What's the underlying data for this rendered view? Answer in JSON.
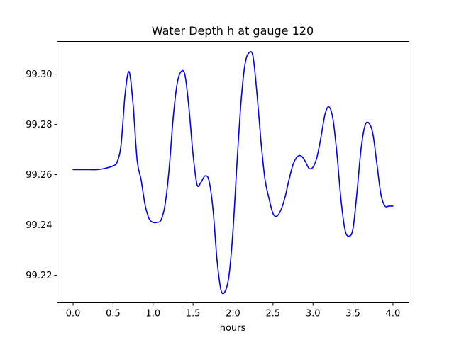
{
  "chart_data": {
    "type": "line",
    "title": "Water Depth h at gauge 120",
    "xlabel": "hours",
    "ylabel": "",
    "xlim": [
      -0.2,
      4.2
    ],
    "ylim": [
      99.209,
      99.313
    ],
    "xticks": [
      0.0,
      0.5,
      1.0,
      1.5,
      2.0,
      2.5,
      3.0,
      3.5,
      4.0
    ],
    "xtick_labels": [
      "0.0",
      "0.5",
      "1.0",
      "1.5",
      "2.0",
      "2.5",
      "3.0",
      "3.5",
      "4.0"
    ],
    "yticks": [
      99.22,
      99.24,
      99.26,
      99.28,
      99.3
    ],
    "ytick_labels": [
      "99.22",
      "99.24",
      "99.26",
      "99.28",
      "99.30"
    ],
    "grid": false,
    "series": [
      {
        "color": "#0000ff",
        "x": [
          0.0,
          0.1,
          0.2,
          0.3,
          0.4,
          0.5,
          0.55,
          0.6,
          0.65,
          0.7,
          0.75,
          0.8,
          0.85,
          0.9,
          0.95,
          1.0,
          1.05,
          1.1,
          1.15,
          1.2,
          1.25,
          1.3,
          1.35,
          1.4,
          1.45,
          1.5,
          1.55,
          1.6,
          1.65,
          1.7,
          1.75,
          1.8,
          1.85,
          1.9,
          1.95,
          2.0,
          2.05,
          2.1,
          2.15,
          2.2,
          2.25,
          2.3,
          2.35,
          2.4,
          2.45,
          2.5,
          2.55,
          2.6,
          2.65,
          2.7,
          2.75,
          2.8,
          2.85,
          2.9,
          2.95,
          3.0,
          3.05,
          3.1,
          3.15,
          3.2,
          3.25,
          3.3,
          3.35,
          3.4,
          3.45,
          3.5,
          3.55,
          3.6,
          3.65,
          3.7,
          3.75,
          3.8,
          3.85,
          3.9,
          3.95,
          4.0
        ],
        "y": [
          99.262,
          99.262,
          99.262,
          99.262,
          99.2625,
          99.2635,
          99.265,
          99.272,
          99.292,
          99.301,
          99.288,
          99.266,
          99.258,
          99.248,
          99.2425,
          99.241,
          99.241,
          99.242,
          99.248,
          99.262,
          99.282,
          99.296,
          99.301,
          99.2995,
          99.286,
          99.268,
          99.256,
          99.257,
          99.2595,
          99.2575,
          99.246,
          99.226,
          99.214,
          99.2135,
          99.22,
          99.238,
          99.265,
          99.289,
          99.304,
          99.3085,
          99.307,
          99.292,
          99.273,
          99.258,
          99.2505,
          99.2445,
          99.2435,
          99.246,
          99.251,
          99.258,
          99.264,
          99.267,
          99.2675,
          99.2655,
          99.2625,
          99.263,
          99.267,
          99.275,
          99.284,
          99.287,
          99.282,
          99.268,
          99.25,
          99.238,
          99.2355,
          99.2385,
          99.253,
          99.27,
          99.2795,
          99.2805,
          99.276,
          99.264,
          99.252,
          99.2475,
          99.2475,
          99.2475
        ]
      }
    ]
  }
}
